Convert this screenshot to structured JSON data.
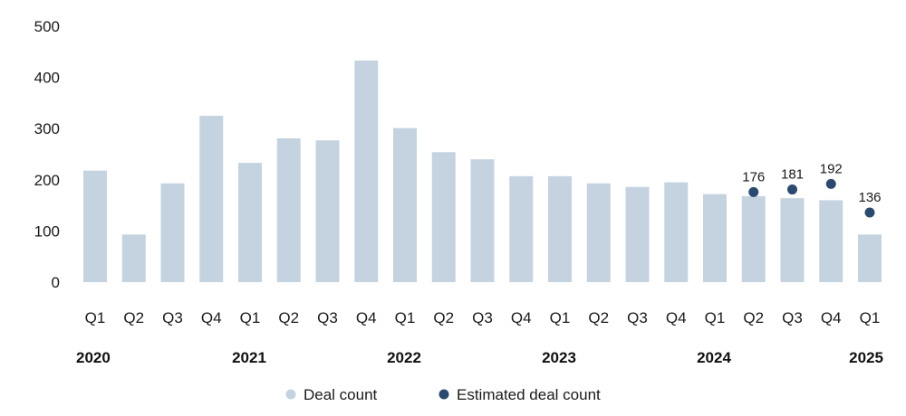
{
  "chart_data": {
    "type": "bar",
    "categories": [
      "Q1",
      "Q2",
      "Q3",
      "Q4",
      "Q1",
      "Q2",
      "Q3",
      "Q4",
      "Q1",
      "Q2",
      "Q3",
      "Q4",
      "Q1",
      "Q2",
      "Q3",
      "Q4",
      "Q1",
      "Q2",
      "Q3",
      "Q4",
      "Q1"
    ],
    "years": [
      {
        "label": "2020",
        "index": 0
      },
      {
        "label": "2021",
        "index": 4
      },
      {
        "label": "2022",
        "index": 8
      },
      {
        "label": "2023",
        "index": 12
      },
      {
        "label": "2024",
        "index": 16
      },
      {
        "label": "2025",
        "index": 20
      }
    ],
    "series": [
      {
        "name": "Deal count",
        "kind": "bar",
        "color": "#c5d3e0",
        "values": [
          218,
          93,
          193,
          325,
          233,
          281,
          277,
          433,
          301,
          254,
          240,
          207,
          207,
          193,
          186,
          195,
          172,
          168,
          164,
          160,
          93
        ]
      },
      {
        "name": "Estimated deal count",
        "kind": "point",
        "color": "#2b4a6f",
        "points": [
          {
            "index": 17,
            "value": 176,
            "label": "176"
          },
          {
            "index": 18,
            "value": 181,
            "label": "181"
          },
          {
            "index": 19,
            "value": 192,
            "label": "192"
          },
          {
            "index": 20,
            "value": 136,
            "label": "136"
          }
        ]
      }
    ],
    "yticks": [
      "0",
      "100",
      "200",
      "300",
      "400",
      "500"
    ],
    "ylim": [
      0,
      500
    ],
    "grid": false,
    "legend": "bottom-center"
  }
}
